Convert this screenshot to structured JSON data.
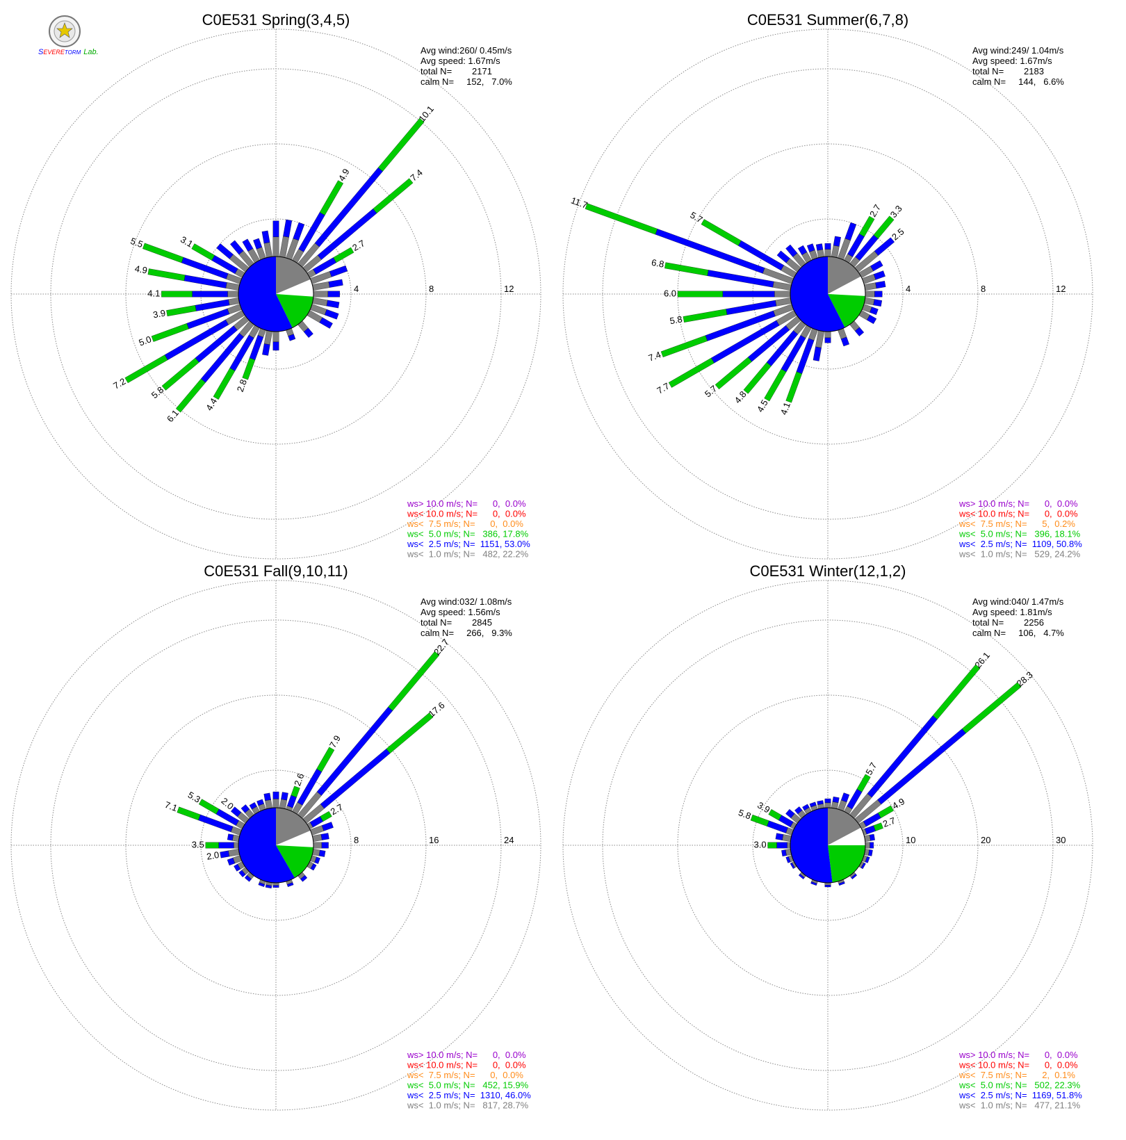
{
  "logo": {
    "text_s": "S",
    "text_evere": "EVERE",
    "text_torm": "TORM",
    "text_lab": "Lab.",
    "colors": {
      "s": "#0000ff",
      "evere": "#ff0000",
      "torm": "#0000ff",
      "lab": "#00aa00"
    }
  },
  "colors": {
    "gray": "#808080",
    "blue": "#0000ff",
    "green": "#00cc00",
    "orange": "#ff8c1a",
    "red": "#ff0000",
    "purple": "#9900cc",
    "grid": "#888888"
  },
  "chart_data": [
    {
      "type": "wind_rose",
      "title": "C0E531 Spring(3,4,5)",
      "stats": [
        "Avg wind:260/ 0.45m/s",
        "Avg speed: 1.67m/s",
        "total N=        2171",
        "calm N=     152,   7.0%"
      ],
      "rings": [
        "4",
        "8",
        "12"
      ],
      "ring_max": 12,
      "pie": [
        {
          "from": 0,
          "to": 67,
          "color": "gray"
        },
        {
          "from": 67,
          "to": 94,
          "color": "white"
        },
        {
          "from": 94,
          "to": 154,
          "color": "green"
        },
        {
          "from": 154,
          "to": 360,
          "color": "blue"
        }
      ],
      "bars": [
        {
          "dir": 10,
          "total": 2.0
        },
        {
          "dir": 20,
          "total": 2.0
        },
        {
          "dir": 30,
          "total": 4.9,
          "label": "4.9"
        },
        {
          "dir": 40,
          "total": 10.1,
          "label": "10.1"
        },
        {
          "dir": 50,
          "total": 7.4,
          "label": "7.4"
        },
        {
          "dir": 60,
          "total": 2.7,
          "label": "2.7"
        },
        {
          "dir": 70,
          "total": 2.0
        },
        {
          "dir": 80,
          "total": 1.6
        },
        {
          "dir": 90,
          "total": 1.4
        },
        {
          "dir": 100,
          "total": 1.4
        },
        {
          "dir": 110,
          "total": 1.5
        },
        {
          "dir": 120,
          "total": 1.4
        },
        {
          "dir": 140,
          "total": 0.9
        },
        {
          "dir": 160,
          "total": 0.6
        },
        {
          "dir": 180,
          "total": 1.0
        },
        {
          "dir": 190,
          "total": 1.3
        },
        {
          "dir": 200,
          "total": 2.8,
          "label": "2.8"
        },
        {
          "dir": 210,
          "total": 4.4,
          "label": "4.4"
        },
        {
          "dir": 220,
          "total": 6.1,
          "label": "6.1"
        },
        {
          "dir": 230,
          "total": 5.8,
          "label": "5.8"
        },
        {
          "dir": 240,
          "total": 7.2,
          "label": "7.2"
        },
        {
          "dir": 250,
          "total": 5.0,
          "label": "5.0"
        },
        {
          "dir": 260,
          "total": 3.9,
          "label": "3.9"
        },
        {
          "dir": 270,
          "total": 4.1,
          "label": "4.1"
        },
        {
          "dir": 280,
          "total": 4.9,
          "label": "4.9"
        },
        {
          "dir": 290,
          "total": 5.5,
          "label": "5.5"
        },
        {
          "dir": 300,
          "total": 3.1,
          "label": "3.1"
        },
        {
          "dir": 310,
          "total": 2.0
        },
        {
          "dir": 320,
          "total": 1.6
        },
        {
          "dir": 330,
          "total": 1.3
        },
        {
          "dir": 340,
          "total": 1.1
        },
        {
          "dir": 350,
          "total": 1.4
        },
        {
          "dir": 360,
          "total": 1.9
        }
      ],
      "legend": [
        {
          "text": "ws> 10.0 m/s; N=      0,  0.0%",
          "color": "purple"
        },
        {
          "text": "ws< 10.0 m/s; N=      0,  0.0%",
          "color": "red"
        },
        {
          "text": "ws<  7.5 m/s; N=      0,  0.0%",
          "color": "orange"
        },
        {
          "text": "ws<  5.0 m/s; N=   386, 17.8%",
          "color": "green"
        },
        {
          "text": "ws<  2.5 m/s; N=  1151, 53.0%",
          "color": "blue"
        },
        {
          "text": "ws<  1.0 m/s; N=   482, 22.2%",
          "color": "gray"
        }
      ]
    },
    {
      "type": "wind_rose",
      "title": "C0E531 Summer(6,7,8)",
      "stats": [
        "Avg wind:249/ 1.04m/s",
        "Avg speed: 1.67m/s",
        "total N=        2183",
        "calm N=     144,   6.6%"
      ],
      "rings": [
        "4",
        "8",
        "12"
      ],
      "ring_max": 12,
      "pie": [
        {
          "from": 0,
          "to": 62,
          "color": "gray"
        },
        {
          "from": 62,
          "to": 93,
          "color": "white"
        },
        {
          "from": 93,
          "to": 153,
          "color": "green"
        },
        {
          "from": 153,
          "to": 360,
          "color": "blue"
        }
      ],
      "bars": [
        {
          "dir": 10,
          "total": 1.1
        },
        {
          "dir": 20,
          "total": 2.0
        },
        {
          "dir": 30,
          "total": 2.7,
          "label": "2.7"
        },
        {
          "dir": 40,
          "total": 3.3,
          "label": "3.3"
        },
        {
          "dir": 50,
          "total": 2.5,
          "label": "2.5"
        },
        {
          "dir": 60,
          "total": 1.3
        },
        {
          "dir": 70,
          "total": 1.2
        },
        {
          "dir": 80,
          "total": 1.1
        },
        {
          "dir": 90,
          "total": 0.9
        },
        {
          "dir": 100,
          "total": 0.9
        },
        {
          "dir": 110,
          "total": 0.8
        },
        {
          "dir": 120,
          "total": 0.9
        },
        {
          "dir": 140,
          "total": 0.8
        },
        {
          "dir": 160,
          "total": 0.9
        },
        {
          "dir": 180,
          "total": 0.6
        },
        {
          "dir": 190,
          "total": 1.6
        },
        {
          "dir": 200,
          "total": 4.1,
          "label": "4.1"
        },
        {
          "dir": 210,
          "total": 4.5,
          "label": "4.5"
        },
        {
          "dir": 220,
          "total": 4.8,
          "label": "4.8"
        },
        {
          "dir": 230,
          "total": 5.7,
          "label": "5.7"
        },
        {
          "dir": 240,
          "total": 7.7,
          "label": "7.7"
        },
        {
          "dir": 250,
          "total": 7.4,
          "label": "7.4"
        },
        {
          "dir": 260,
          "total": 5.8,
          "label": "5.8"
        },
        {
          "dir": 270,
          "total": 6.0,
          "label": "6.0"
        },
        {
          "dir": 280,
          "total": 6.8,
          "label": "6.8"
        },
        {
          "dir": 290,
          "total": 11.7,
          "label": "11.7"
        },
        {
          "dir": 300,
          "total": 5.7,
          "label": "5.7"
        },
        {
          "dir": 310,
          "total": 1.4
        },
        {
          "dir": 320,
          "total": 1.3
        },
        {
          "dir": 330,
          "total": 0.9
        },
        {
          "dir": 340,
          "total": 0.8
        },
        {
          "dir": 350,
          "total": 0.7
        },
        {
          "dir": 360,
          "total": 0.7
        }
      ],
      "legend": [
        {
          "text": "ws> 10.0 m/s; N=      0,  0.0%",
          "color": "purple"
        },
        {
          "text": "ws< 10.0 m/s; N=      0,  0.0%",
          "color": "red"
        },
        {
          "text": "ws<  7.5 m/s; N=      5,  0.2%",
          "color": "orange"
        },
        {
          "text": "ws<  5.0 m/s; N=   396, 18.1%",
          "color": "green"
        },
        {
          "text": "ws<  2.5 m/s; N=  1109, 50.8%",
          "color": "blue"
        },
        {
          "text": "ws<  1.0 m/s; N=   529, 24.2%",
          "color": "gray"
        }
      ]
    },
    {
      "type": "wind_rose",
      "title": "C0E531 Fall(9,10,11)",
      "stats": [
        "Avg wind:032/ 1.08m/s",
        "Avg speed: 1.56m/s",
        "total N=        2845",
        "calm N=     266,   9.3%"
      ],
      "rings": [
        "8",
        "16",
        "24"
      ],
      "ring_max": 24,
      "pie": [
        {
          "from": 0,
          "to": 67,
          "color": "gray"
        },
        {
          "from": 67,
          "to": 93,
          "color": "white"
        },
        {
          "from": 93,
          "to": 150,
          "color": "green"
        },
        {
          "from": 150,
          "to": 360,
          "color": "blue"
        }
      ],
      "bars": [
        {
          "dir": 10,
          "total": 1.7
        },
        {
          "dir": 20,
          "total": 2.6,
          "label": "2.6"
        },
        {
          "dir": 30,
          "total": 7.9,
          "label": "7.9"
        },
        {
          "dir": 40,
          "total": 22.7,
          "label": "22.7"
        },
        {
          "dir": 50,
          "total": 17.6,
          "label": "17.6"
        },
        {
          "dir": 60,
          "total": 2.7,
          "label": "2.7"
        },
        {
          "dir": 70,
          "total": 2.4
        },
        {
          "dir": 80,
          "total": 1.7
        },
        {
          "dir": 90,
          "total": 1.6
        },
        {
          "dir": 100,
          "total": 1.3
        },
        {
          "dir": 110,
          "total": 0.9
        },
        {
          "dir": 120,
          "total": 0.8
        },
        {
          "dir": 140,
          "total": 0.8
        },
        {
          "dir": 160,
          "total": 0.6
        },
        {
          "dir": 180,
          "total": 0.5
        },
        {
          "dir": 190,
          "total": 0.6
        },
        {
          "dir": 200,
          "total": 0.6
        },
        {
          "dir": 220,
          "total": 0.8
        },
        {
          "dir": 230,
          "total": 0.9
        },
        {
          "dir": 240,
          "total": 1.0
        },
        {
          "dir": 250,
          "total": 1.4
        },
        {
          "dir": 260,
          "total": 2.0,
          "label": "2.0"
        },
        {
          "dir": 270,
          "total": 3.5,
          "label": "3.5"
        },
        {
          "dir": 280,
          "total": 1.2
        },
        {
          "dir": 290,
          "total": 7.1,
          "label": "7.1"
        },
        {
          "dir": 300,
          "total": 5.3,
          "label": "5.3"
        },
        {
          "dir": 310,
          "total": 2.0,
          "label": "2.0"
        },
        {
          "dir": 320,
          "total": 1.4
        },
        {
          "dir": 330,
          "total": 1.1
        },
        {
          "dir": 340,
          "total": 1.1
        },
        {
          "dir": 350,
          "total": 1.6
        },
        {
          "dir": 360,
          "total": 1.7
        }
      ],
      "legend": [
        {
          "text": "ws> 10.0 m/s; N=      0,  0.0%",
          "color": "purple"
        },
        {
          "text": "ws< 10.0 m/s; N=      0,  0.0%",
          "color": "red"
        },
        {
          "text": "ws<  7.5 m/s; N=      0,  0.0%",
          "color": "orange"
        },
        {
          "text": "ws<  5.0 m/s; N=   452, 15.9%",
          "color": "green"
        },
        {
          "text": "ws<  2.5 m/s; N=  1310, 46.0%",
          "color": "blue"
        },
        {
          "text": "ws<  1.0 m/s; N=   817, 28.7%",
          "color": "gray"
        }
      ]
    },
    {
      "type": "wind_rose",
      "title": "C0E531 Winter(12,1,2)",
      "stats": [
        "Avg wind:040/ 1.47m/s",
        "Avg speed: 1.81m/s",
        "total N=        2256",
        "calm N=     106,   4.7%"
      ],
      "rings": [
        "10",
        "20",
        "30"
      ],
      "ring_max": 30,
      "pie": [
        {
          "from": 0,
          "to": 62,
          "color": "gray"
        },
        {
          "from": 62,
          "to": 90,
          "color": "white"
        },
        {
          "from": 90,
          "to": 173,
          "color": "green"
        },
        {
          "from": 173,
          "to": 360,
          "color": "blue"
        }
      ],
      "bars": [
        {
          "dir": 10,
          "total": 1.5
        },
        {
          "dir": 20,
          "total": 2.3
        },
        {
          "dir": 30,
          "total": 5.7,
          "label": "5.7"
        },
        {
          "dir": 40,
          "total": 26.1,
          "label": "26.1"
        },
        {
          "dir": 50,
          "total": 28.3,
          "label": "28.3"
        },
        {
          "dir": 60,
          "total": 4.9,
          "label": "4.9"
        },
        {
          "dir": 70,
          "total": 2.7,
          "label": "2.7"
        },
        {
          "dir": 80,
          "total": 1.3
        },
        {
          "dir": 90,
          "total": 1.1
        },
        {
          "dir": 100,
          "total": 1.0
        },
        {
          "dir": 110,
          "total": 0.8
        },
        {
          "dir": 120,
          "total": 0.6
        },
        {
          "dir": 140,
          "total": 0.4
        },
        {
          "dir": 160,
          "total": 0.4
        },
        {
          "dir": 180,
          "total": 0.4
        },
        {
          "dir": 200,
          "total": 0.4
        },
        {
          "dir": 220,
          "total": 0.4
        },
        {
          "dir": 240,
          "total": 0.5
        },
        {
          "dir": 250,
          "total": 0.8
        },
        {
          "dir": 260,
          "total": 1.2
        },
        {
          "dir": 270,
          "total": 3.0,
          "label": "3.0"
        },
        {
          "dir": 280,
          "total": 2.0
        },
        {
          "dir": 290,
          "total": 5.8,
          "label": "5.8"
        },
        {
          "dir": 300,
          "total": 3.9,
          "label": "3.9"
        },
        {
          "dir": 310,
          "total": 2.0
        },
        {
          "dir": 320,
          "total": 1.4
        },
        {
          "dir": 330,
          "total": 1.1
        },
        {
          "dir": 340,
          "total": 1.0
        },
        {
          "dir": 350,
          "total": 1.0
        },
        {
          "dir": 360,
          "total": 1.2
        }
      ],
      "legend": [
        {
          "text": "ws> 10.0 m/s; N=      0,  0.0%",
          "color": "purple"
        },
        {
          "text": "ws< 10.0 m/s; N=      0,  0.0%",
          "color": "red"
        },
        {
          "text": "ws<  7.5 m/s; N=      2,  0.1%",
          "color": "orange"
        },
        {
          "text": "ws<  5.0 m/s; N=   502, 22.3%",
          "color": "green"
        },
        {
          "text": "ws<  2.5 m/s; N=  1169, 51.8%",
          "color": "blue"
        },
        {
          "text": "ws<  1.0 m/s; N=   477, 21.1%",
          "color": "gray"
        }
      ]
    }
  ]
}
